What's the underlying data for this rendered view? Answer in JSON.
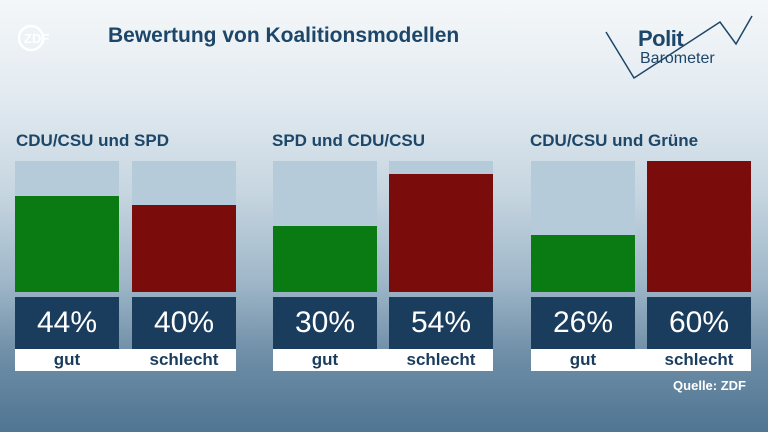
{
  "brand": {
    "logo_text": "ZDF"
  },
  "header": {
    "title": "Bewertung von Koalitionsmodellen"
  },
  "politbarometer": {
    "word1": "Polit",
    "word2": "Barometer"
  },
  "colors": {
    "good": "#0a7a12",
    "bad": "#7a0c0c",
    "bar_bg": "#b5cbda",
    "panel": "#1a3d5e"
  },
  "chart_data": {
    "type": "bar",
    "title": "Bewertung von Koalitionsmodellen",
    "ylim": [
      0,
      60
    ],
    "groups": [
      {
        "name": "CDU/CSU und SPD",
        "categories": [
          "gut",
          "schlecht"
        ],
        "values": [
          44,
          40
        ],
        "labels": [
          "44%",
          "40%"
        ]
      },
      {
        "name": "SPD und CDU/CSU",
        "categories": [
          "gut",
          "schlecht"
        ],
        "values": [
          30,
          54
        ],
        "labels": [
          "30%",
          "54%"
        ]
      },
      {
        "name": "CDU/CSU und Grüne",
        "categories": [
          "gut",
          "schlecht"
        ],
        "values": [
          26,
          60
        ],
        "labels": [
          "26%",
          "60%"
        ]
      }
    ]
  },
  "footer": {
    "source": "Quelle: ZDF"
  }
}
